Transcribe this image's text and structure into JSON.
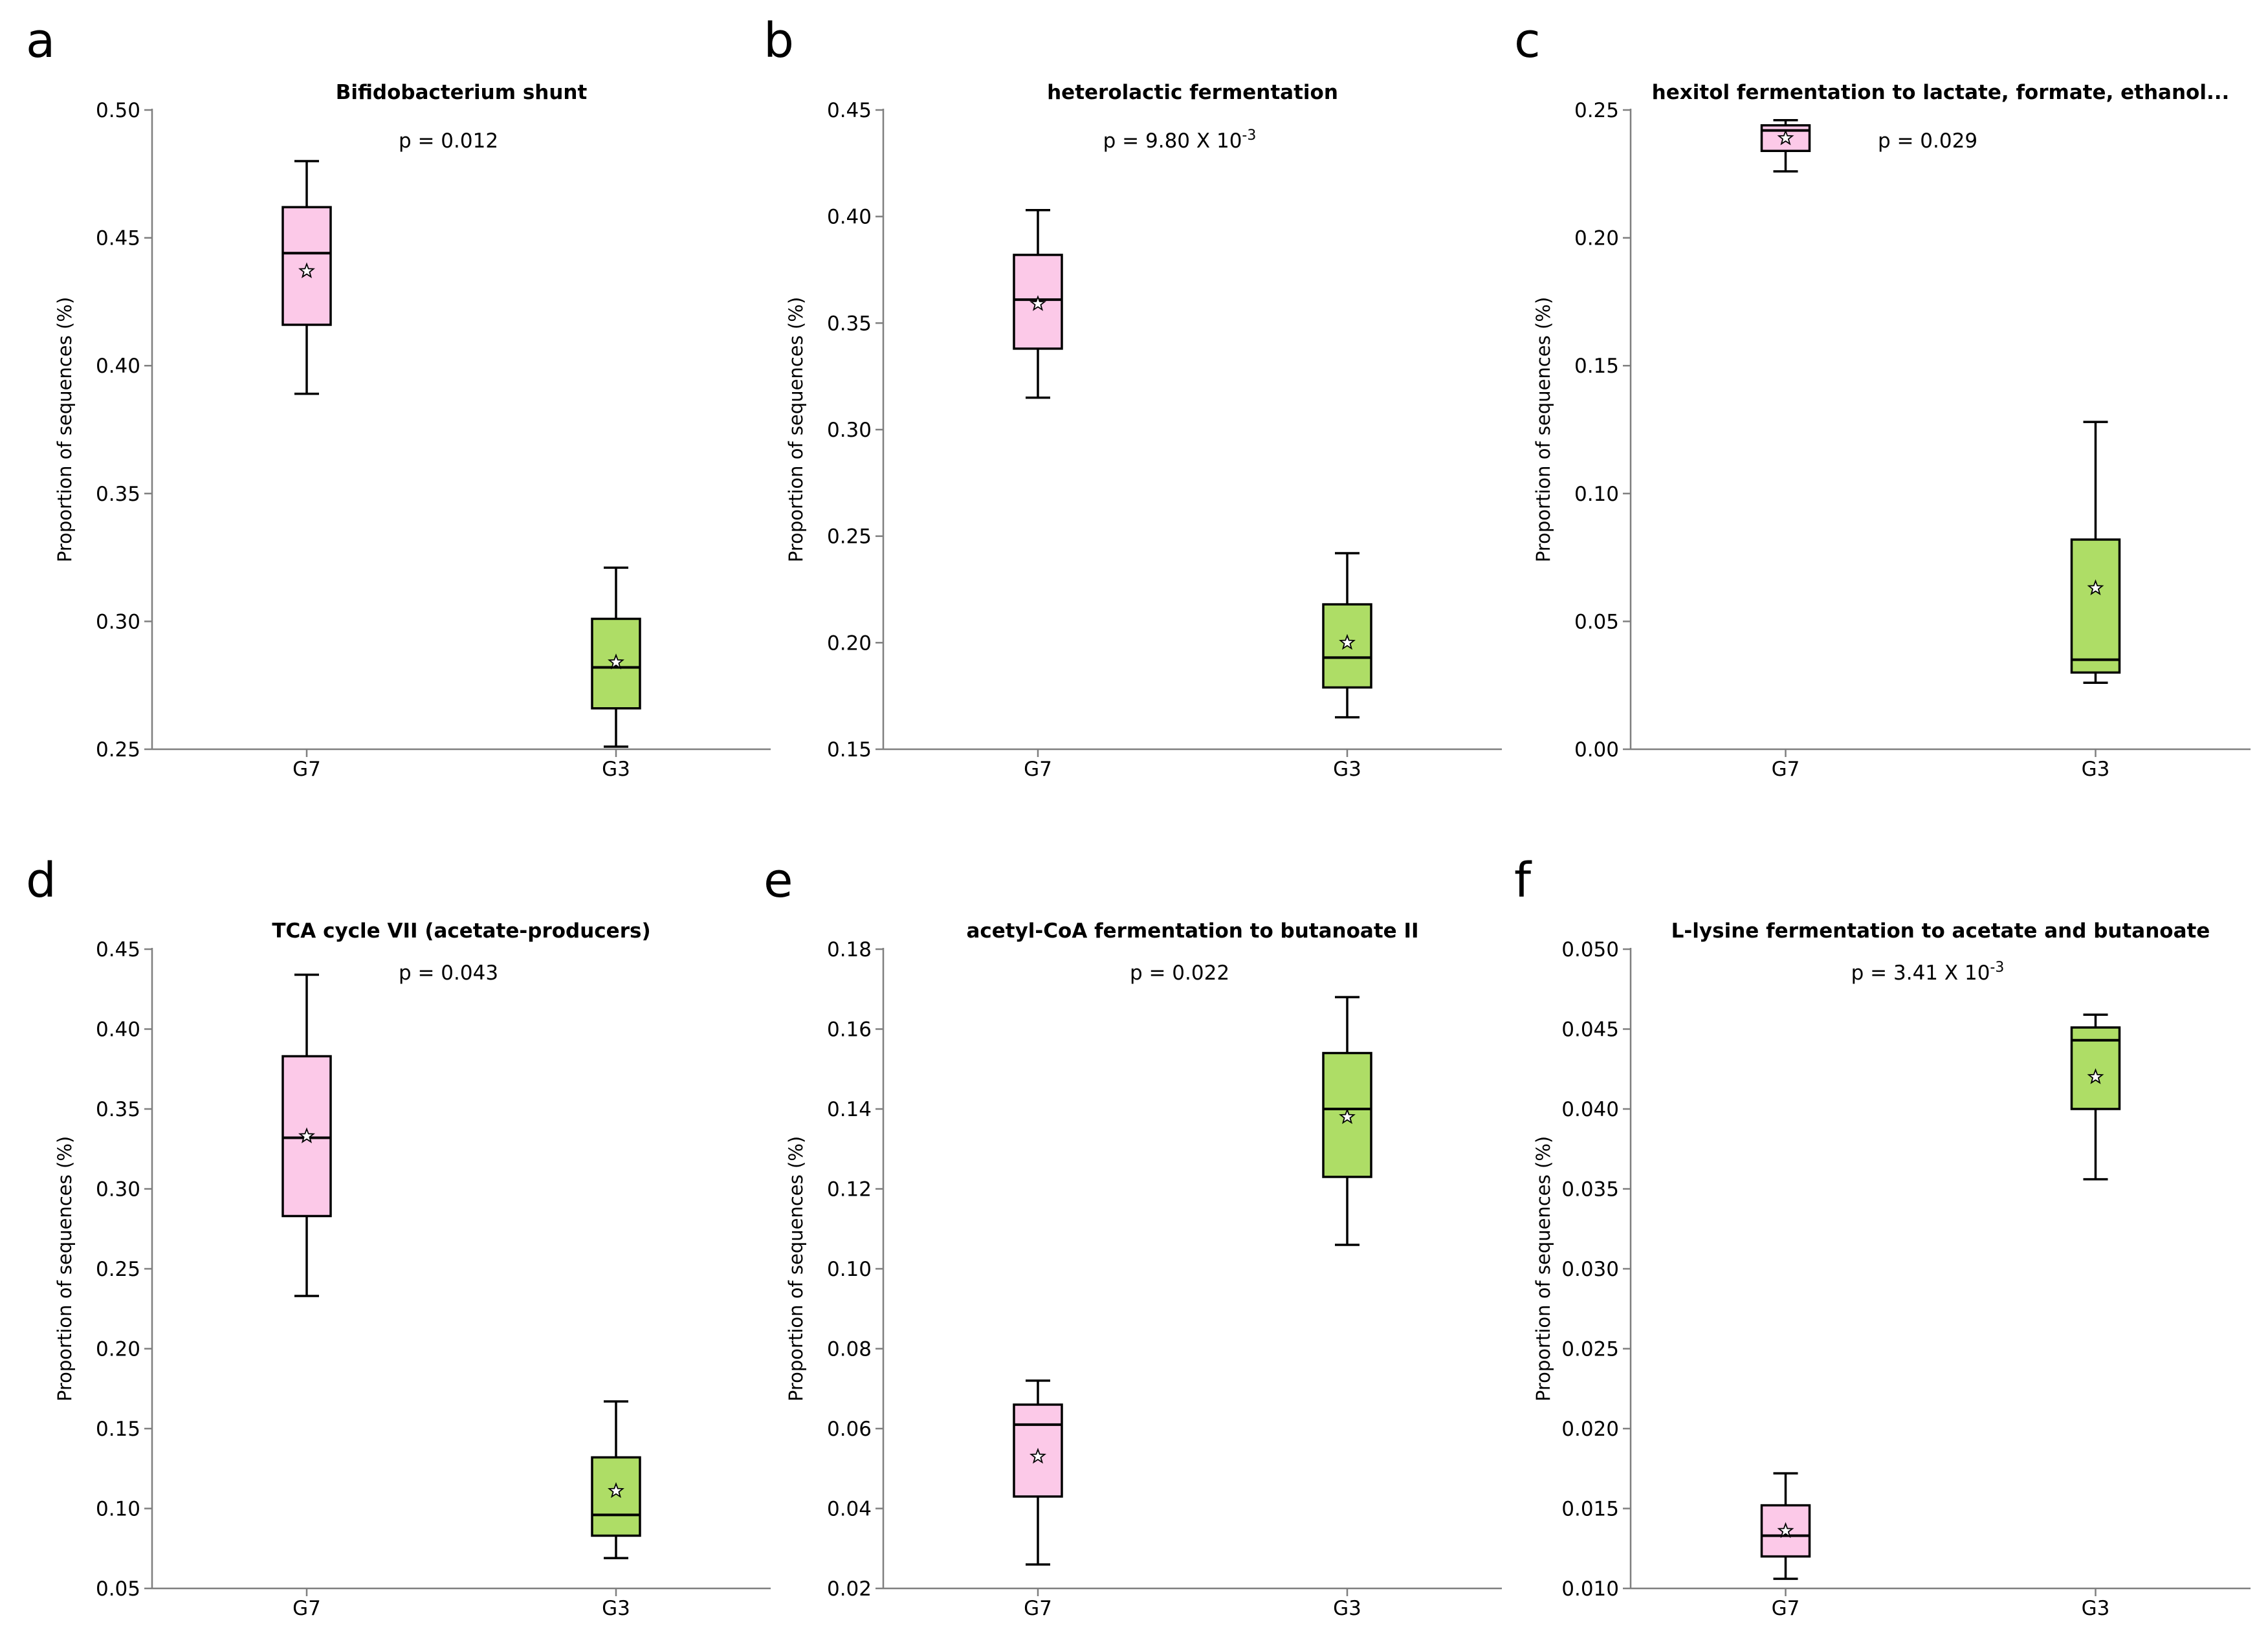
{
  "figure": {
    "colors": {
      "G7": "#fcc9e8",
      "G3": "#aedd66",
      "axis": "#7f7f7f"
    }
  },
  "chart_data": [
    {
      "type": "box",
      "panel": "a",
      "title": "Bifidobacterium shunt",
      "pvalue": {
        "text": "p = 0.012"
      },
      "ylabel": "Proportion of sequences (%)",
      "ylim": [
        0.25,
        0.5
      ],
      "yticks": [
        0.25,
        0.3,
        0.35,
        0.4,
        0.45,
        0.5
      ],
      "yticklabels": [
        "0.25",
        "0.30",
        "0.35",
        "0.40",
        "0.45",
        "0.50"
      ],
      "categories": [
        "G7",
        "G3"
      ],
      "series": [
        {
          "name": "G7",
          "color": "#fcc9e8",
          "whisker_low": 0.389,
          "q1": 0.416,
          "median": 0.444,
          "q3": 0.462,
          "whisker_high": 0.48,
          "mean": 0.437
        },
        {
          "name": "G3",
          "color": "#aedd66",
          "whisker_low": 0.251,
          "q1": 0.266,
          "median": 0.282,
          "q3": 0.301,
          "whisker_high": 0.321,
          "mean": 0.284
        }
      ]
    },
    {
      "type": "box",
      "panel": "b",
      "title": "heterolactic fermentation",
      "pvalue": {
        "text": "p = 9.80 X 10",
        "exp": "-3"
      },
      "ylabel": "Proportion of sequences (%)",
      "ylim": [
        0.15,
        0.45
      ],
      "yticks": [
        0.15,
        0.2,
        0.25,
        0.3,
        0.35,
        0.4,
        0.45
      ],
      "yticklabels": [
        "0.15",
        "0.20",
        "0.25",
        "0.30",
        "0.35",
        "0.40",
        "0.45"
      ],
      "categories": [
        "G7",
        "G3"
      ],
      "series": [
        {
          "name": "G7",
          "color": "#fcc9e8",
          "whisker_low": 0.315,
          "q1": 0.338,
          "median": 0.361,
          "q3": 0.382,
          "whisker_high": 0.403,
          "mean": 0.359
        },
        {
          "name": "G3",
          "color": "#aedd66",
          "whisker_low": 0.165,
          "q1": 0.179,
          "median": 0.193,
          "q3": 0.218,
          "whisker_high": 0.242,
          "mean": 0.2
        }
      ]
    },
    {
      "type": "box",
      "panel": "c",
      "title": "hexitol fermentation to lactate, formate, ethanol...",
      "pvalue": {
        "text": "p = 0.029"
      },
      "ylabel": "Proportion of sequences (%)",
      "ylim": [
        0.0,
        0.25
      ],
      "yticks": [
        0.0,
        0.05,
        0.1,
        0.15,
        0.2,
        0.25
      ],
      "yticklabels": [
        "0.00",
        "0.05",
        "0.10",
        "0.15",
        "0.20",
        "0.25"
      ],
      "categories": [
        "G7",
        "G3"
      ],
      "series": [
        {
          "name": "G7",
          "color": "#fcc9e8",
          "whisker_low": 0.226,
          "q1": 0.234,
          "median": 0.242,
          "q3": 0.244,
          "whisker_high": 0.246,
          "mean": 0.239
        },
        {
          "name": "G3",
          "color": "#aedd66",
          "whisker_low": 0.026,
          "q1": 0.03,
          "median": 0.035,
          "q3": 0.082,
          "whisker_high": 0.128,
          "mean": 0.063
        }
      ]
    },
    {
      "type": "box",
      "panel": "d",
      "title": "TCA cycle VII (acetate-producers)",
      "pvalue": {
        "text": "p = 0.043"
      },
      "ylabel": "Proportion of sequences (%)",
      "ylim": [
        0.05,
        0.45
      ],
      "yticks": [
        0.05,
        0.1,
        0.15,
        0.2,
        0.25,
        0.3,
        0.35,
        0.4,
        0.45
      ],
      "yticklabels": [
        "0.05",
        "0.10",
        "0.15",
        "0.20",
        "0.25",
        "0.30",
        "0.35",
        "0.40",
        "0.45"
      ],
      "categories": [
        "G7",
        "G3"
      ],
      "series": [
        {
          "name": "G7",
          "color": "#fcc9e8",
          "whisker_low": 0.233,
          "q1": 0.283,
          "median": 0.332,
          "q3": 0.383,
          "whisker_high": 0.434,
          "mean": 0.333
        },
        {
          "name": "G3",
          "color": "#aedd66",
          "whisker_low": 0.069,
          "q1": 0.083,
          "median": 0.096,
          "q3": 0.132,
          "whisker_high": 0.167,
          "mean": 0.111
        }
      ]
    },
    {
      "type": "box",
      "panel": "e",
      "title": "acetyl-CoA fermentation to butanoate II",
      "pvalue": {
        "text": "p = 0.022"
      },
      "ylabel": "Proportion of sequences (%)",
      "ylim": [
        0.02,
        0.18
      ],
      "yticks": [
        0.02,
        0.04,
        0.06,
        0.08,
        0.1,
        0.12,
        0.14,
        0.16,
        0.18
      ],
      "yticklabels": [
        "0.02",
        "0.04",
        "0.06",
        "0.08",
        "0.10",
        "0.12",
        "0.14",
        "0.16",
        "0.18"
      ],
      "categories": [
        "G7",
        "G3"
      ],
      "series": [
        {
          "name": "G7",
          "color": "#fcc9e8",
          "whisker_low": 0.026,
          "q1": 0.043,
          "median": 0.061,
          "q3": 0.066,
          "whisker_high": 0.072,
          "mean": 0.053
        },
        {
          "name": "G3",
          "color": "#aedd66",
          "whisker_low": 0.106,
          "q1": 0.123,
          "median": 0.14,
          "q3": 0.154,
          "whisker_high": 0.168,
          "mean": 0.138
        }
      ]
    },
    {
      "type": "box",
      "panel": "f",
      "title": "L-lysine fermentation to acetate and butanoate",
      "pvalue": {
        "text": "p = 3.41 X 10",
        "exp": "-3"
      },
      "ylabel": "Proportion of sequences (%)",
      "ylim": [
        0.01,
        0.05
      ],
      "yticks": [
        0.01,
        0.015,
        0.02,
        0.025,
        0.03,
        0.035,
        0.04,
        0.045,
        0.05
      ],
      "yticklabels": [
        "0.010",
        "0.015",
        "0.020",
        "0.025",
        "0.030",
        "0.035",
        "0.040",
        "0.045",
        "0.050"
      ],
      "categories": [
        "G7",
        "G3"
      ],
      "series": [
        {
          "name": "G7",
          "color": "#fcc9e8",
          "whisker_low": 0.0106,
          "q1": 0.012,
          "median": 0.0133,
          "q3": 0.0152,
          "whisker_high": 0.0172,
          "mean": 0.0136
        },
        {
          "name": "G3",
          "color": "#aedd66",
          "whisker_low": 0.0356,
          "q1": 0.04,
          "median": 0.0443,
          "q3": 0.0451,
          "whisker_high": 0.0459,
          "mean": 0.042
        }
      ]
    }
  ]
}
